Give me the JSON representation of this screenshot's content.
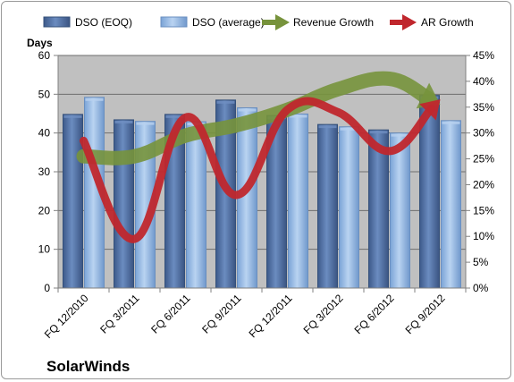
{
  "chart_data": {
    "type": "bar",
    "title": "",
    "company": "SolarWinds",
    "ylabel_left": "Days",
    "categories": [
      "FQ 12/2010",
      "FQ 3/2011",
      "FQ 6/2011",
      "FQ 9/2011",
      "FQ 12/2011",
      "FQ 3/2012",
      "FQ 6/2012",
      "FQ 9/2012"
    ],
    "series": [
      {
        "name": "DSO (EOQ)",
        "kind": "bar",
        "axis": "left",
        "color": "#4f6fa3",
        "values": [
          44.8,
          43.4,
          44.8,
          48.5,
          44.5,
          42.2,
          40.8,
          49.7
        ]
      },
      {
        "name": "DSO (average)",
        "kind": "bar",
        "axis": "left",
        "color": "#8eb4e3",
        "values": [
          49.2,
          43.0,
          42.9,
          46.5,
          44.9,
          41.6,
          40.0,
          43.2
        ]
      },
      {
        "name": "Revenue Growth",
        "kind": "line",
        "axis": "right",
        "color": "#77933c",
        "values": [
          25.5,
          25.5,
          29.5,
          31.5,
          34.5,
          38.5,
          40.5,
          35.5
        ]
      },
      {
        "name": "AR Growth",
        "kind": "line",
        "axis": "right",
        "color": "#c0272d",
        "values": [
          28.5,
          9.5,
          33.0,
          18.0,
          34.5,
          34.0,
          26.5,
          36.5
        ]
      }
    ],
    "y_left": {
      "min": 0,
      "max": 60,
      "step": 10,
      "ticks": [
        "0",
        "10",
        "20",
        "30",
        "40",
        "50",
        "60"
      ]
    },
    "y_right": {
      "min": 0,
      "max": 45,
      "step": 5,
      "ticks": [
        "0%",
        "5%",
        "10%",
        "15%",
        "20%",
        "25%",
        "30%",
        "35%",
        "40%",
        "45%"
      ]
    },
    "grid": true,
    "legend_position": "top"
  }
}
